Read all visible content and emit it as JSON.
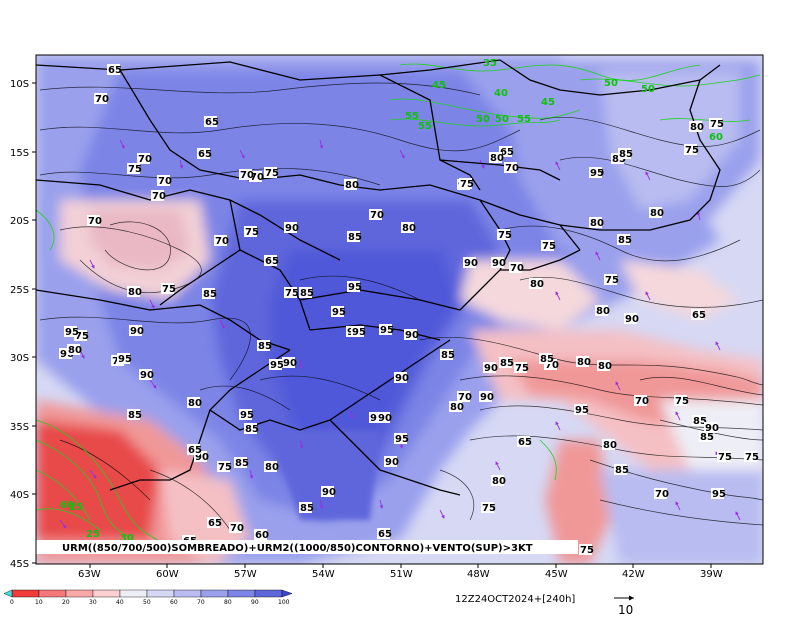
{
  "caption": "URM((850/700/500)SOMBREADO)+URM2((1000/850)CONTORNO)+VENTO(SUP)>3KT",
  "timestamp": "12Z24OCT2024+[240h]",
  "vector_reference": "10",
  "lat_labels": [
    "10S",
    "15S",
    "20S",
    "25S",
    "30S",
    "35S",
    "40S",
    "45S"
  ],
  "lon_labels": [
    "63W",
    "60W",
    "57W",
    "54W",
    "51W",
    "48W",
    "45W",
    "42W",
    "39W"
  ],
  "colorbar_labels": [
    "0",
    "10",
    "20",
    "30",
    "40",
    "50",
    "60",
    "70",
    "80",
    "90",
    "100"
  ],
  "colorbar_colors": [
    "#f03c3c",
    "#f57878",
    "#f9a8a8",
    "#fcd0d0",
    "#eeeef6",
    "#d6d8f4",
    "#b8bcf0",
    "#9aa0ec",
    "#7c84e6",
    "#5e66dc"
  ],
  "colors": {
    "humid": "#6a72e4",
    "very_humid": "#4f58d8",
    "dry": "#f07070",
    "very_dry": "#e84848",
    "neutral": "#f2eef2",
    "contour_black": "#000000",
    "contour_green": "#20d020",
    "vector_purple": "#9a30e0",
    "border": "#000000"
  },
  "contour_labels_black": [
    "65",
    "70",
    "65",
    "65",
    "70",
    "75",
    "70",
    "70",
    "75",
    "70",
    "70",
    "75",
    "65",
    "90",
    "85",
    "80",
    "75",
    "70",
    "70",
    "80",
    "80",
    "70",
    "75",
    "85",
    "65",
    "70",
    "80",
    "75",
    "75",
    "85",
    "80",
    "85",
    "90",
    "90",
    "80",
    "90",
    "95",
    "85",
    "90",
    "85",
    "75",
    "70",
    "80",
    "75",
    "80",
    "80",
    "90",
    "75",
    "70",
    "90",
    "65",
    "95",
    "95",
    "90",
    "95",
    "90",
    "95",
    "80",
    "85",
    "90",
    "75",
    "70",
    "90",
    "95",
    "90",
    "80",
    "95",
    "85",
    "75",
    "85",
    "90",
    "80",
    "80",
    "95",
    "90",
    "90",
    "95",
    "95",
    "80",
    "85",
    "85",
    "75",
    "70",
    "75",
    "85",
    "65",
    "75",
    "90",
    "85",
    "80",
    "85",
    "70",
    "95",
    "90",
    "90",
    "85",
    "90",
    "65",
    "75",
    "65",
    "70",
    "65",
    "60",
    "75",
    "80",
    "75",
    "85",
    "95",
    "85",
    "95",
    "80",
    "70",
    "80",
    "75",
    "65"
  ],
  "contour_labels_green": [
    "35",
    "45",
    "40",
    "45",
    "55",
    "55",
    "50",
    "50",
    "55",
    "50",
    "50",
    "60",
    "60",
    "25",
    "30",
    "25"
  ]
}
